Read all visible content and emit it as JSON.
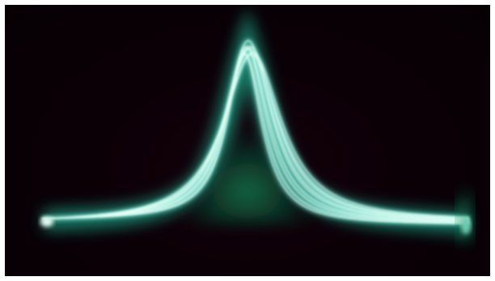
{
  "image": {
    "subject": "oscilloscope-trace-peak",
    "colors": {
      "background": "#0a0006",
      "trace_core": "#e8fff6",
      "trace_mid": "#7fe6d6",
      "trace_glow": "#1fa88a",
      "inner_glow": "#0b6b45",
      "border": "#ffffff"
    }
  }
}
